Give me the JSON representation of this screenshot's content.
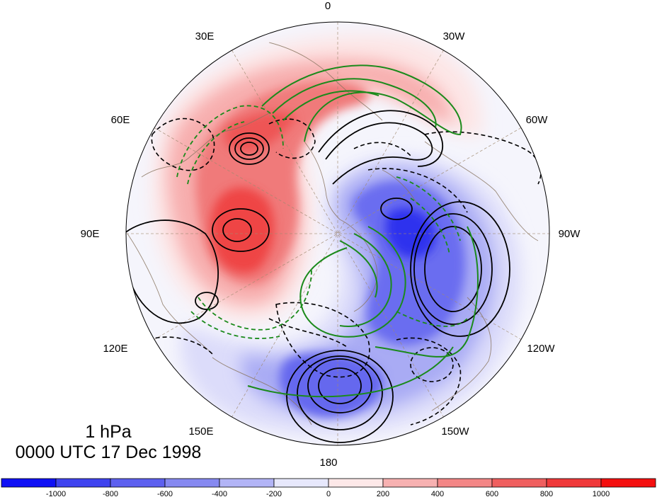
{
  "map": {
    "longitude_labels": {
      "top": "0",
      "top_left": "30E",
      "top_right": "30W",
      "upper_left": "60E",
      "upper_right": "60W",
      "left": "90E",
      "right": "90W",
      "lower_left": "120E",
      "lower_right": "120W",
      "bottom_left": "150E",
      "bottom_right": "150W",
      "bottom": "180"
    },
    "level": "1 hPa",
    "datetime": "0000 UTC 17 Dec 1998"
  },
  "colorbar": {
    "tick_labels": [
      "-1000",
      "-800",
      "-600",
      "-400",
      "-200",
      "0",
      "200",
      "400",
      "600",
      "800",
      "1000"
    ],
    "colors": [
      "#0f10f5",
      "#3f43ef",
      "#5d60ef",
      "#8689f1",
      "#b2b4f6",
      "#e7e8fc",
      "#fde8e8",
      "#f7b1b1",
      "#f38686",
      "#ef5f5f",
      "#f0393a",
      "#f40f0f"
    ]
  },
  "legend_colors": {
    "contour_solid": "#000000",
    "contour_dashed": "#000000",
    "green_contour": "#1b8a1b",
    "coastline": "#8a7560"
  }
}
